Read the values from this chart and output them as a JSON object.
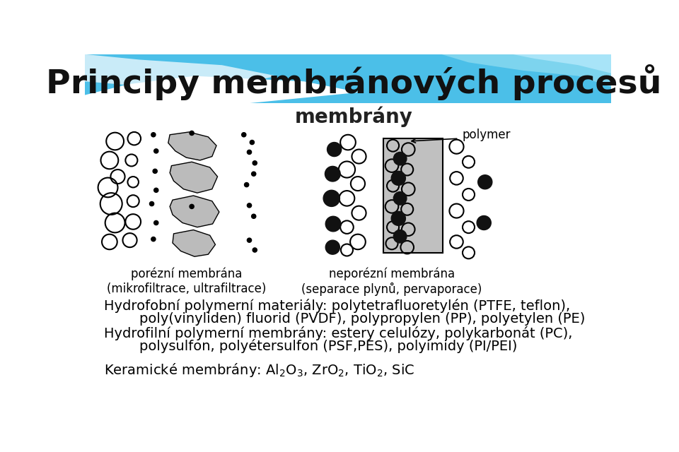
{
  "title": "Principy membránových procesů",
  "subtitle": "membrány",
  "label_porous": "porézní membrána\n(mikrofiltrace, ultrafiltrace)",
  "label_nonporous": "neporézní membrána\n(separace plynů, pervaporace)",
  "label_polymer": "polymer",
  "line1": "Hydrofobní polymerní materiály: polytetrafluoretylén (PTFE, teflon),",
  "line2": "        poly(vinyliden) fluorid (PVDF), polypropylen (PP), polyetylen (PE)",
  "line3": "Hydrofilní polymerní membrány: estery celulózy, polykarbonát (PC),",
  "line4": "        polysulfon, polyétersulfon (PSF,PES), polyimidy (PI/PEI)",
  "text_fontsize": 14,
  "label_fontsize": 12,
  "title_fontsize": 34,
  "subtitle_fontsize": 20,
  "header_blue": "#4BBFE8",
  "header_blue2": "#7DD4EE",
  "header_blue3": "#A8E4F8"
}
